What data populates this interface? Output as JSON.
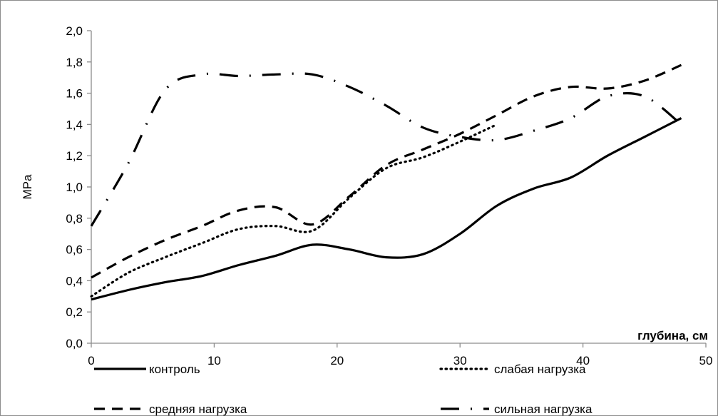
{
  "chart_data": {
    "type": "line",
    "ylabel": "MPa",
    "xlabel": "глубина, см",
    "xlim": [
      0,
      50
    ],
    "ylim": [
      0,
      2.0
    ],
    "x_ticks": [
      0,
      10,
      20,
      30,
      40,
      50
    ],
    "x_tick_labels": [
      "0",
      "10",
      "20",
      "30",
      "40",
      "50"
    ],
    "y_ticks": [
      0,
      0.2,
      0.4,
      0.6,
      0.8,
      1.0,
      1.2,
      1.4,
      1.6,
      1.8,
      2.0
    ],
    "y_tick_labels": [
      "0,0",
      "0,2",
      "0,4",
      "0,6",
      "0,8",
      "1,0",
      "1,2",
      "1,4",
      "1,6",
      "1,8",
      "2,0"
    ],
    "grid": false,
    "legend_position": "bottom",
    "series": [
      {
        "name": "контроль",
        "style": "solid",
        "color": "#000000",
        "x": [
          0,
          3,
          6,
          9,
          12,
          15,
          18,
          21,
          24,
          27,
          30,
          33,
          36,
          39,
          42,
          45,
          48
        ],
        "y": [
          0.28,
          0.34,
          0.39,
          0.43,
          0.5,
          0.56,
          0.63,
          0.6,
          0.55,
          0.57,
          0.7,
          0.88,
          0.99,
          1.06,
          1.2,
          1.32,
          1.44
        ]
      },
      {
        "name": "слабая нагрузка",
        "style": "dotted",
        "color": "#000000",
        "x": [
          0,
          3,
          6,
          9,
          12,
          15,
          18,
          21,
          24,
          27,
          30,
          33
        ],
        "y": [
          0.3,
          0.45,
          0.55,
          0.64,
          0.73,
          0.75,
          0.72,
          0.93,
          1.12,
          1.19,
          1.29,
          1.4
        ]
      },
      {
        "name": "средняя нагрузка",
        "style": "dashed",
        "color": "#000000",
        "x": [
          0,
          3,
          6,
          9,
          12,
          15,
          18,
          21,
          24,
          27,
          30,
          33,
          36,
          39,
          42,
          45,
          48
        ],
        "y": [
          0.42,
          0.55,
          0.66,
          0.75,
          0.85,
          0.87,
          0.76,
          0.94,
          1.14,
          1.24,
          1.34,
          1.46,
          1.58,
          1.64,
          1.63,
          1.68,
          1.78
        ]
      },
      {
        "name": "сильная нагрузка",
        "style": "dash-dot",
        "color": "#000000",
        "x": [
          0,
          3,
          6,
          9,
          12,
          15,
          18,
          21,
          24,
          27,
          30,
          33,
          36,
          39,
          42,
          45,
          48
        ],
        "y": [
          0.75,
          1.15,
          1.62,
          1.72,
          1.71,
          1.72,
          1.72,
          1.64,
          1.52,
          1.38,
          1.32,
          1.3,
          1.36,
          1.44,
          1.58,
          1.58,
          1.4
        ]
      }
    ]
  }
}
